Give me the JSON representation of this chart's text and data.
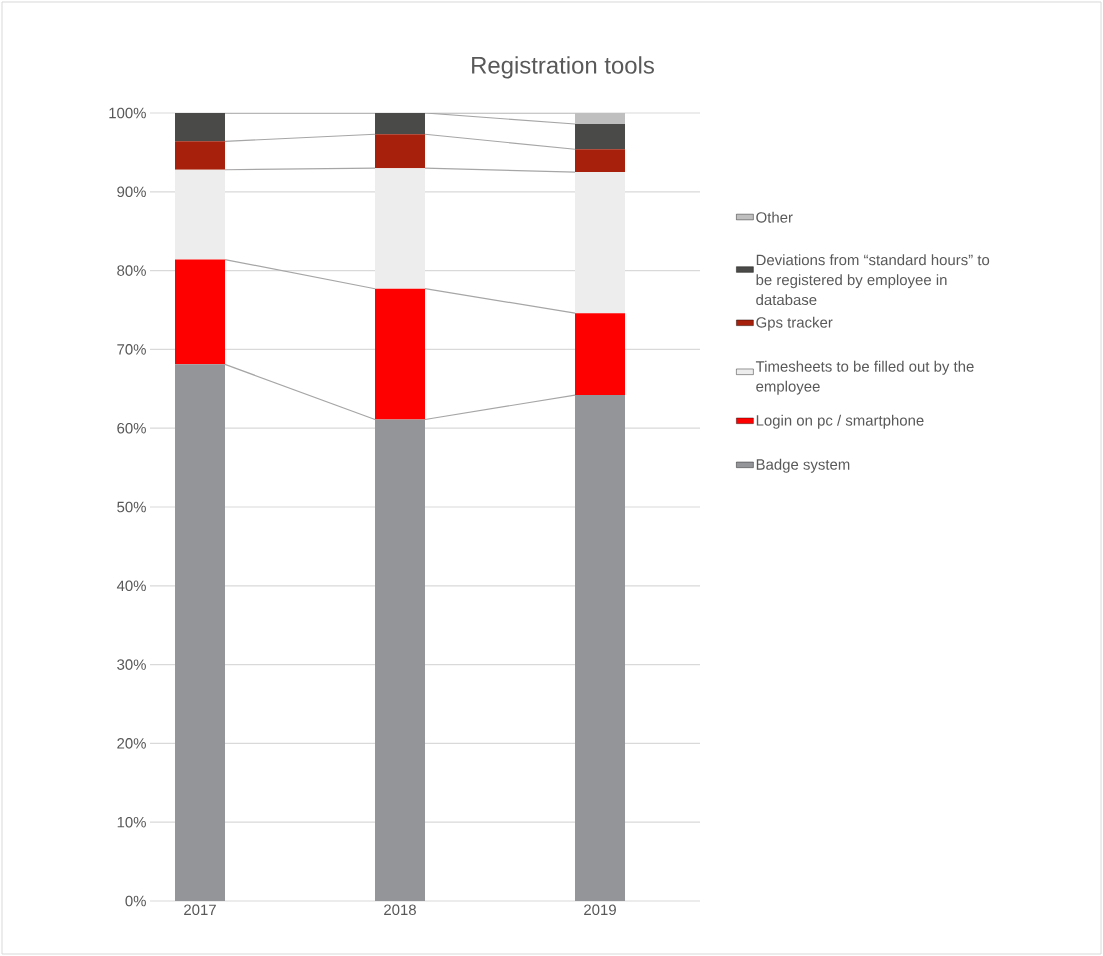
{
  "chart_data": {
    "type": "bar",
    "title": "Registration tools",
    "stacked": true,
    "categories": [
      "2017",
      "2018",
      "2019"
    ],
    "series": [
      {
        "name": "Badge system",
        "color": "#939598",
        "values": [
          68.1,
          61.1,
          64.2
        ]
      },
      {
        "name": "Login on pc / smartphone",
        "color": "#ff0000",
        "values": [
          13.3,
          16.6,
          10.4
        ]
      },
      {
        "name": "Timesheets to be filled out by the employee",
        "color": "#ededed",
        "values": [
          11.4,
          15.3,
          17.9
        ]
      },
      {
        "name": "Gps tracker",
        "color": "#a6200b",
        "values": [
          3.6,
          4.3,
          2.9
        ]
      },
      {
        "name": "Deviations from “standard hours” to be registered by employee in database",
        "color": "#4a4a48",
        "values": [
          3.6,
          2.7,
          3.2
        ]
      },
      {
        "name": "Other",
        "color": "#bfbfbf",
        "values": [
          0,
          0,
          1.4
        ]
      }
    ],
    "ylim": [
      0,
      100
    ],
    "yticks": [
      {
        "value": 0,
        "label": "0%"
      },
      {
        "value": 10,
        "label": "10%"
      },
      {
        "value": 20,
        "label": "20%"
      },
      {
        "value": 30,
        "label": "30%"
      },
      {
        "value": 40,
        "label": "40%"
      },
      {
        "value": 50,
        "label": "50%"
      },
      {
        "value": 60,
        "label": "60%"
      },
      {
        "value": 70,
        "label": "70%"
      },
      {
        "value": 80,
        "label": "80%"
      },
      {
        "value": 90,
        "label": "90%"
      },
      {
        "value": 100,
        "label": "100%"
      }
    ],
    "grid": "y",
    "legend": "right"
  }
}
